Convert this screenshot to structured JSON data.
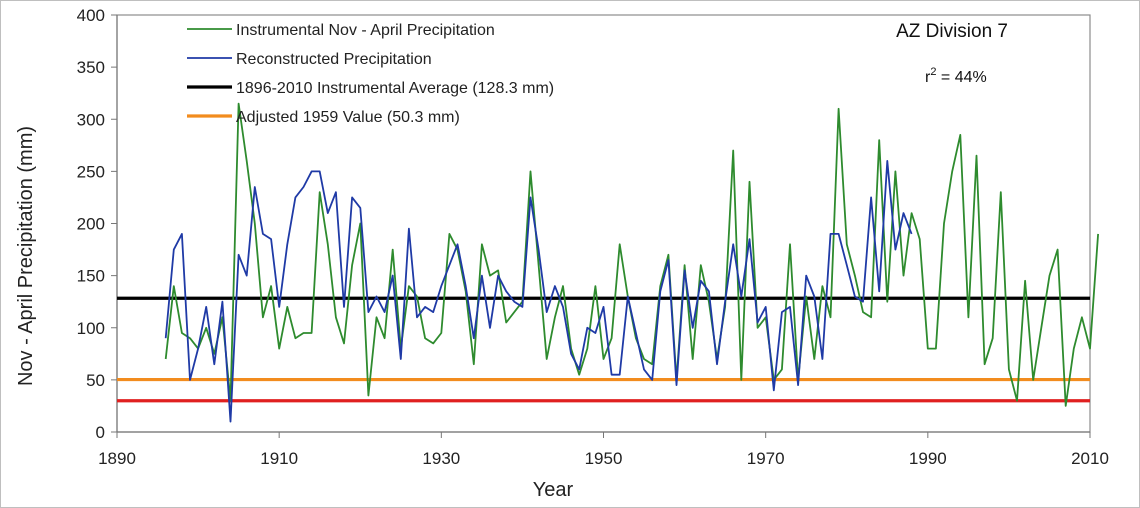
{
  "chart_data": {
    "type": "line",
    "title": "",
    "xlabel": "Year",
    "ylabel": "Nov - April Precipitation (mm)",
    "xlim": [
      1890,
      2010
    ],
    "ylim": [
      0,
      400
    ],
    "x_ticks": [
      "1890",
      "1910",
      "1930",
      "1950",
      "1970",
      "1990",
      "2010"
    ],
    "y_ticks": [
      "0",
      "50",
      "100",
      "150",
      "200",
      "250",
      "300",
      "350",
      "400"
    ],
    "grid": false,
    "legend_position": "top-left",
    "annotations": {
      "division": "AZ Division 7",
      "r2_prefix": "r",
      "r2_sup": "2",
      "r2_suffix": " = 44%"
    },
    "series": [
      {
        "name": "Instrumental Nov - April Precipitation",
        "color": "#2e8b2e",
        "start_year": 1896,
        "values": [
          70,
          140,
          95,
          90,
          80,
          100,
          75,
          110,
          30,
          315,
          260,
          200,
          110,
          140,
          80,
          120,
          90,
          95,
          95,
          230,
          180,
          110,
          85,
          160,
          200,
          35,
          110,
          90,
          175,
          80,
          140,
          130,
          90,
          85,
          95,
          190,
          175,
          135,
          65,
          180,
          150,
          155,
          105,
          115,
          125,
          250,
          160,
          70,
          110,
          140,
          80,
          55,
          80,
          140,
          70,
          90,
          180,
          130,
          90,
          70,
          65,
          140,
          170,
          50,
          160,
          70,
          160,
          125,
          70,
          120,
          270,
          50,
          240,
          100,
          110,
          50,
          60,
          180,
          50,
          130,
          70,
          140,
          110,
          310,
          180,
          150,
          115,
          110,
          280,
          125,
          250,
          150,
          210,
          185,
          80,
          80,
          200,
          250,
          285,
          110,
          265,
          65,
          90,
          230,
          60,
          30,
          145,
          50,
          100,
          150,
          175,
          25,
          80,
          110,
          80,
          190
        ]
      },
      {
        "name": "Reconstructed Precipitation",
        "color": "#1f3aa6",
        "start_year": 1896,
        "values": [
          90,
          175,
          190,
          50,
          80,
          120,
          65,
          125,
          10,
          170,
          150,
          235,
          190,
          185,
          120,
          180,
          225,
          235,
          250,
          250,
          210,
          230,
          120,
          225,
          215,
          115,
          130,
          115,
          150,
          70,
          195,
          110,
          120,
          115,
          140,
          160,
          180,
          140,
          90,
          150,
          100,
          150,
          135,
          125,
          120,
          225,
          175,
          115,
          140,
          120,
          75,
          60,
          100,
          95,
          120,
          55,
          55,
          130,
          95,
          60,
          50,
          135,
          165,
          45,
          155,
          100,
          145,
          135,
          65,
          125,
          180,
          130,
          185,
          105,
          120,
          40,
          115,
          120,
          45,
          150,
          130,
          70,
          190,
          190,
          160,
          130,
          125,
          225,
          135,
          260,
          175,
          210,
          190
        ]
      },
      {
        "name": "1896-2010 Instrumental Average (128.3 mm)",
        "color": "#000000",
        "value": 128.3
      },
      {
        "name": "Adjusted 1959 Value (50.3 mm)",
        "color": "#f28c1e",
        "value": 50.3
      },
      {
        "name": "",
        "color": "#e02020",
        "value": 30
      }
    ]
  }
}
